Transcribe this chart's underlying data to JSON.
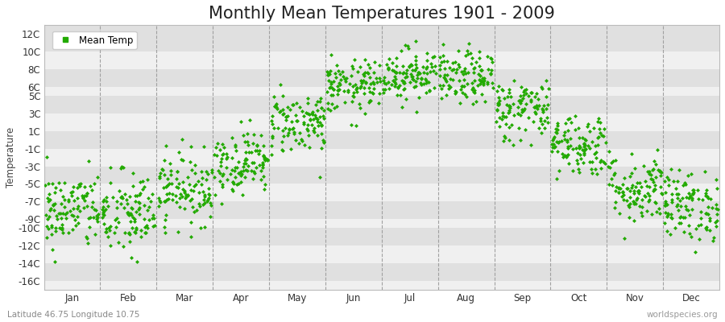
{
  "title": "Monthly Mean Temperatures 1901 - 2009",
  "ylabel": "Temperature",
  "xlabel_bottom_left": "Latitude 46.75 Longitude 10.75",
  "xlabel_bottom_right": "worldspecies.org",
  "legend_label": "Mean Temp",
  "dot_color": "#22aa00",
  "bg_color": "#ffffff",
  "plot_bg_light": "#f0f0f0",
  "plot_bg_dark": "#e0e0e0",
  "ytick_labels": [
    "-16C",
    "-14C",
    "-12C",
    "-10C",
    "-9C",
    "-7C",
    "-5C",
    "-3C",
    "-1C",
    "1C",
    "3C",
    "5C",
    "6C",
    "8C",
    "10C",
    "12C"
  ],
  "ytick_values": [
    -16,
    -14,
    -12,
    -10,
    -9,
    -7,
    -5,
    -3,
    -1,
    1,
    3,
    5,
    6,
    8,
    10,
    12
  ],
  "ylim": [
    -17,
    13
  ],
  "months": [
    "Jan",
    "Feb",
    "Mar",
    "Apr",
    "May",
    "Jun",
    "Jul",
    "Aug",
    "Sep",
    "Oct",
    "Nov",
    "Dec"
  ],
  "month_means": [
    -8.0,
    -8.5,
    -5.5,
    -2.5,
    2.0,
    6.0,
    7.5,
    7.0,
    3.5,
    -0.5,
    -5.5,
    -7.5
  ],
  "month_stds": [
    2.2,
    2.5,
    2.0,
    1.8,
    1.8,
    1.5,
    1.5,
    1.5,
    1.8,
    1.8,
    2.0,
    2.0
  ],
  "n_years": 109,
  "random_seed": 42,
  "title_fontsize": 15,
  "axis_fontsize": 8.5,
  "legend_fontsize": 8.5,
  "marker_size": 2.5
}
